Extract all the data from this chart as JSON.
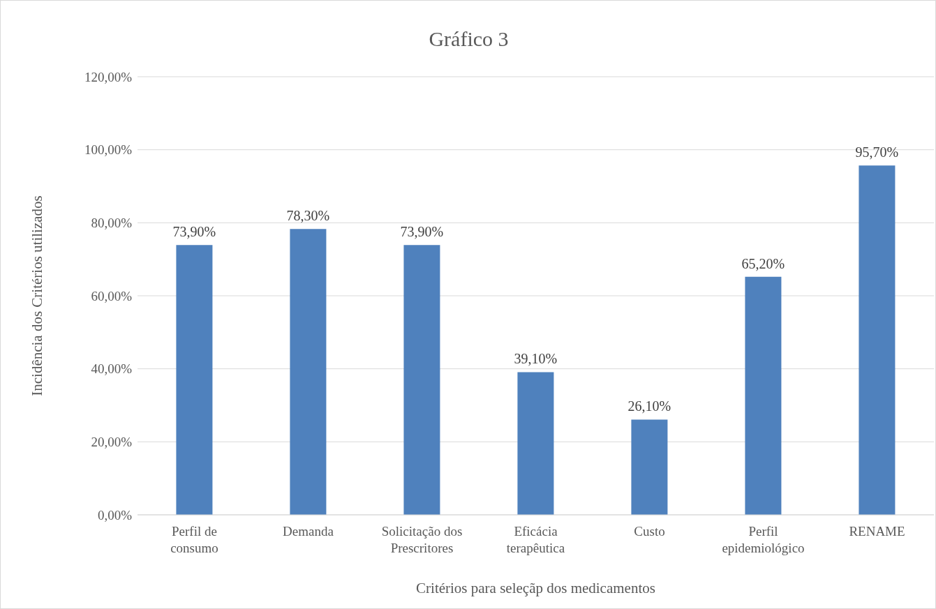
{
  "chart_data": {
    "type": "bar",
    "title": "Gráfico 3",
    "xlabel": "Critérios para seleçãp dos medicamentos",
    "ylabel": "Incidência dos Critérios utilizados",
    "categories": [
      "Perfil de consumo",
      "Demanda",
      "Solicitação dos Prescritores",
      "Eficácia terapêutica",
      "Custo",
      "Perfil epidemiológico",
      "RENAME"
    ],
    "series": [
      {
        "color": "#4f81bd",
        "values": [
          73.9,
          78.3,
          73.9,
          39.1,
          26.1,
          65.2,
          95.7
        ],
        "value_labels": [
          "73,90%",
          "78,30%",
          "73,90%",
          "39,10%",
          "26,10%",
          "65,20%",
          "95,70%"
        ]
      }
    ],
    "ylim": [
      0,
      120
    ],
    "yticks": [
      {
        "value": 0,
        "label": "0,00%"
      },
      {
        "value": 20,
        "label": "20,00%"
      },
      {
        "value": 40,
        "label": "40,00%"
      },
      {
        "value": 60,
        "label": "60,00%"
      },
      {
        "value": 80,
        "label": "80,00%"
      },
      {
        "value": 100,
        "label": "100,00%"
      },
      {
        "value": 120,
        "label": "120,00%"
      }
    ],
    "grid": "y"
  }
}
